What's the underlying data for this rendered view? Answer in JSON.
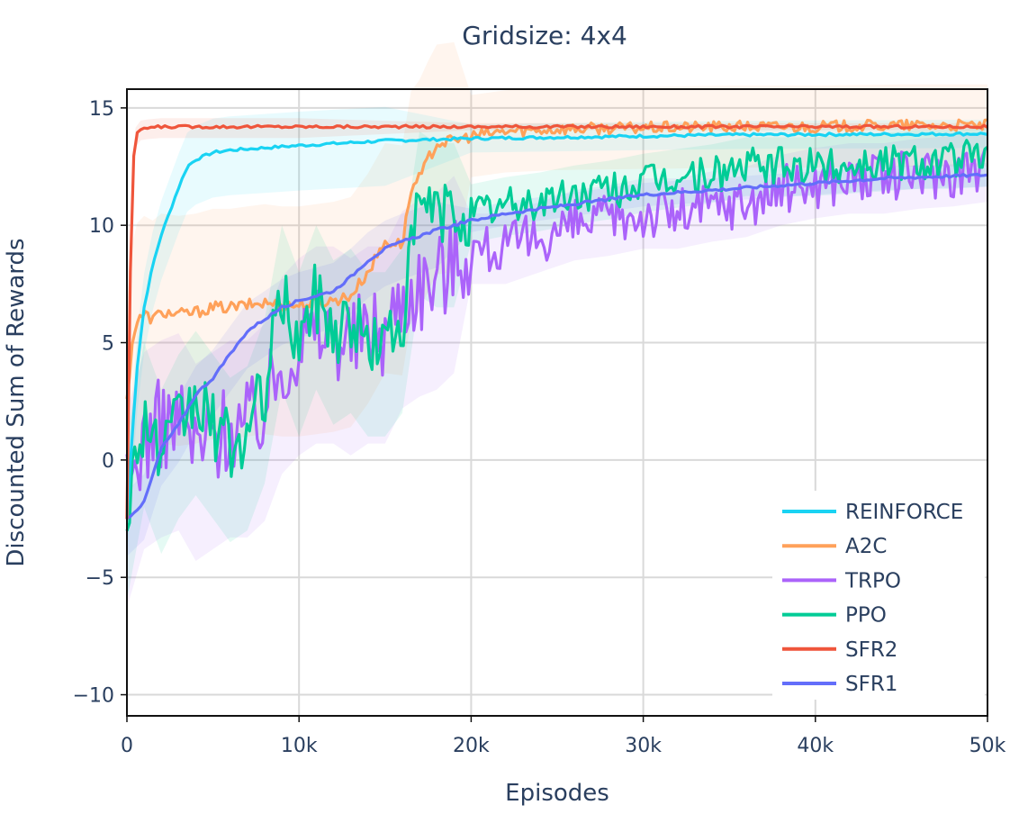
{
  "chart_data": {
    "type": "line",
    "title": "Gridsize: 4x4",
    "xlabel": "Episodes",
    "ylabel": "Discounted Sum of Rewards",
    "xlim": [
      0,
      50000
    ],
    "ylim": [
      -10.9,
      15.8
    ],
    "x_ticks": [
      0,
      10000,
      20000,
      30000,
      40000,
      50000
    ],
    "x_tick_labels": [
      "0",
      "10k",
      "20k",
      "30k",
      "40k",
      "50k"
    ],
    "y_ticks": [
      -10,
      -5,
      0,
      5,
      10,
      15
    ],
    "y_tick_labels": [
      "−10",
      "−5",
      "0",
      "5",
      "10",
      "15"
    ],
    "grid": true,
    "legend_position": "bottom-right",
    "series": [
      {
        "name": "REINFORCE",
        "color": "#19d3f3",
        "x": [
          0,
          300,
          600,
          1000,
          1500,
          2000,
          2500,
          3000,
          3500,
          4000,
          5000,
          6000,
          8000,
          10000,
          15000,
          20000,
          25000,
          30000,
          35000,
          40000,
          45000,
          50000
        ],
        "y": [
          -2.5,
          1.0,
          4.0,
          6.5,
          8.3,
          9.6,
          10.6,
          11.6,
          12.5,
          12.8,
          13.1,
          13.2,
          13.3,
          13.4,
          13.6,
          13.7,
          13.75,
          13.8,
          13.85,
          13.87,
          13.88,
          13.9
        ]
      },
      {
        "name": "A2C",
        "color": "#ffa15a",
        "x": [
          0,
          300,
          600,
          1000,
          1500,
          2000,
          3000,
          4000,
          5000,
          6000,
          7000,
          8000,
          9000,
          10000,
          11000,
          12000,
          13000,
          14000,
          15000,
          16000,
          16500,
          17000,
          17500,
          18000,
          19000,
          20000,
          22000,
          25000,
          30000,
          35000,
          40000,
          45000,
          50000
        ],
        "y": [
          2.5,
          5.0,
          5.9,
          6.2,
          6.0,
          6.3,
          6.2,
          6.3,
          6.5,
          6.5,
          6.6,
          6.7,
          6.6,
          6.6,
          6.7,
          6.8,
          7.0,
          8.0,
          9.3,
          9.2,
          11.5,
          12.0,
          12.8,
          13.5,
          13.6,
          13.8,
          14.0,
          14.1,
          14.15,
          14.2,
          14.2,
          14.25,
          14.25
        ]
      },
      {
        "name": "TRPO",
        "color": "#ab63fa",
        "x": [
          0,
          1000,
          2000,
          3000,
          4000,
          5000,
          6000,
          7000,
          8000,
          9000,
          10000,
          11000,
          12000,
          13000,
          14000,
          15000,
          16000,
          17000,
          18000,
          19000,
          20000,
          22000,
          24000,
          26000,
          28000,
          30000,
          32000,
          34000,
          36000,
          38000,
          40000,
          42000,
          44000,
          46000,
          48000,
          50000
        ],
        "y": [
          -1.5,
          1.0,
          1.5,
          1.8,
          0.5,
          1.0,
          1.5,
          1.5,
          2.2,
          4.2,
          5.0,
          5.5,
          5.5,
          5.0,
          5.5,
          5.5,
          7.0,
          7.5,
          7.8,
          8.5,
          9.0,
          9.0,
          9.5,
          10.0,
          10.2,
          10.5,
          10.5,
          10.8,
          11.0,
          11.5,
          11.8,
          12.0,
          12.0,
          12.2,
          12.3,
          12.5
        ]
      },
      {
        "name": "PPO",
        "color": "#00cc96",
        "x": [
          0,
          1000,
          2000,
          3000,
          4000,
          5000,
          6000,
          7000,
          8000,
          9000,
          10000,
          11000,
          12000,
          13000,
          14000,
          15000,
          16000,
          17000,
          18000,
          19000,
          20000,
          22000,
          24000,
          26000,
          28000,
          30000,
          32000,
          34000,
          36000,
          38000,
          40000,
          42000,
          44000,
          46000,
          48000,
          50000
        ],
        "y": [
          -2.0,
          2.0,
          0.0,
          1.5,
          2.5,
          1.5,
          0.5,
          1.0,
          3.0,
          7.0,
          5.0,
          7.0,
          5.5,
          6.0,
          5.0,
          5.0,
          6.0,
          11.0,
          10.5,
          10.5,
          10.5,
          10.8,
          11.0,
          11.3,
          11.5,
          11.8,
          12.0,
          12.2,
          12.5,
          12.5,
          12.5,
          12.6,
          12.7,
          12.8,
          12.8,
          12.9
        ]
      },
      {
        "name": "SFR2",
        "color": "#ef553b",
        "x": [
          0,
          150,
          300,
          500,
          800,
          1200,
          2000,
          3000,
          5000,
          10000,
          20000,
          30000,
          40000,
          50000
        ],
        "y": [
          -2.5,
          6.0,
          12.0,
          13.8,
          14.1,
          14.15,
          14.2,
          14.2,
          14.2,
          14.2,
          14.2,
          14.2,
          14.2,
          14.2
        ]
      },
      {
        "name": "SFR1",
        "color": "#636efa",
        "x": [
          0,
          1000,
          2000,
          3000,
          4000,
          5000,
          6000,
          7000,
          8000,
          9000,
          10000,
          11000,
          12000,
          13000,
          14000,
          15000,
          16000,
          18000,
          20000,
          22000,
          24000,
          26000,
          28000,
          30000,
          32000,
          34000,
          36000,
          38000,
          40000,
          42000,
          44000,
          46000,
          48000,
          50000
        ],
        "y": [
          -2.5,
          -1.8,
          0.5,
          1.5,
          2.8,
          3.5,
          4.5,
          5.5,
          6.0,
          6.5,
          6.8,
          7.0,
          7.2,
          7.8,
          8.5,
          9.0,
          9.3,
          9.8,
          10.2,
          10.5,
          10.7,
          10.9,
          11.1,
          11.3,
          11.4,
          11.5,
          11.6,
          11.7,
          11.8,
          11.9,
          12.0,
          12.05,
          12.1,
          12.15
        ]
      }
    ],
    "legend_order": [
      "REINFORCE",
      "A2C",
      "TRPO",
      "PPO",
      "SFR2",
      "SFR1"
    ]
  }
}
